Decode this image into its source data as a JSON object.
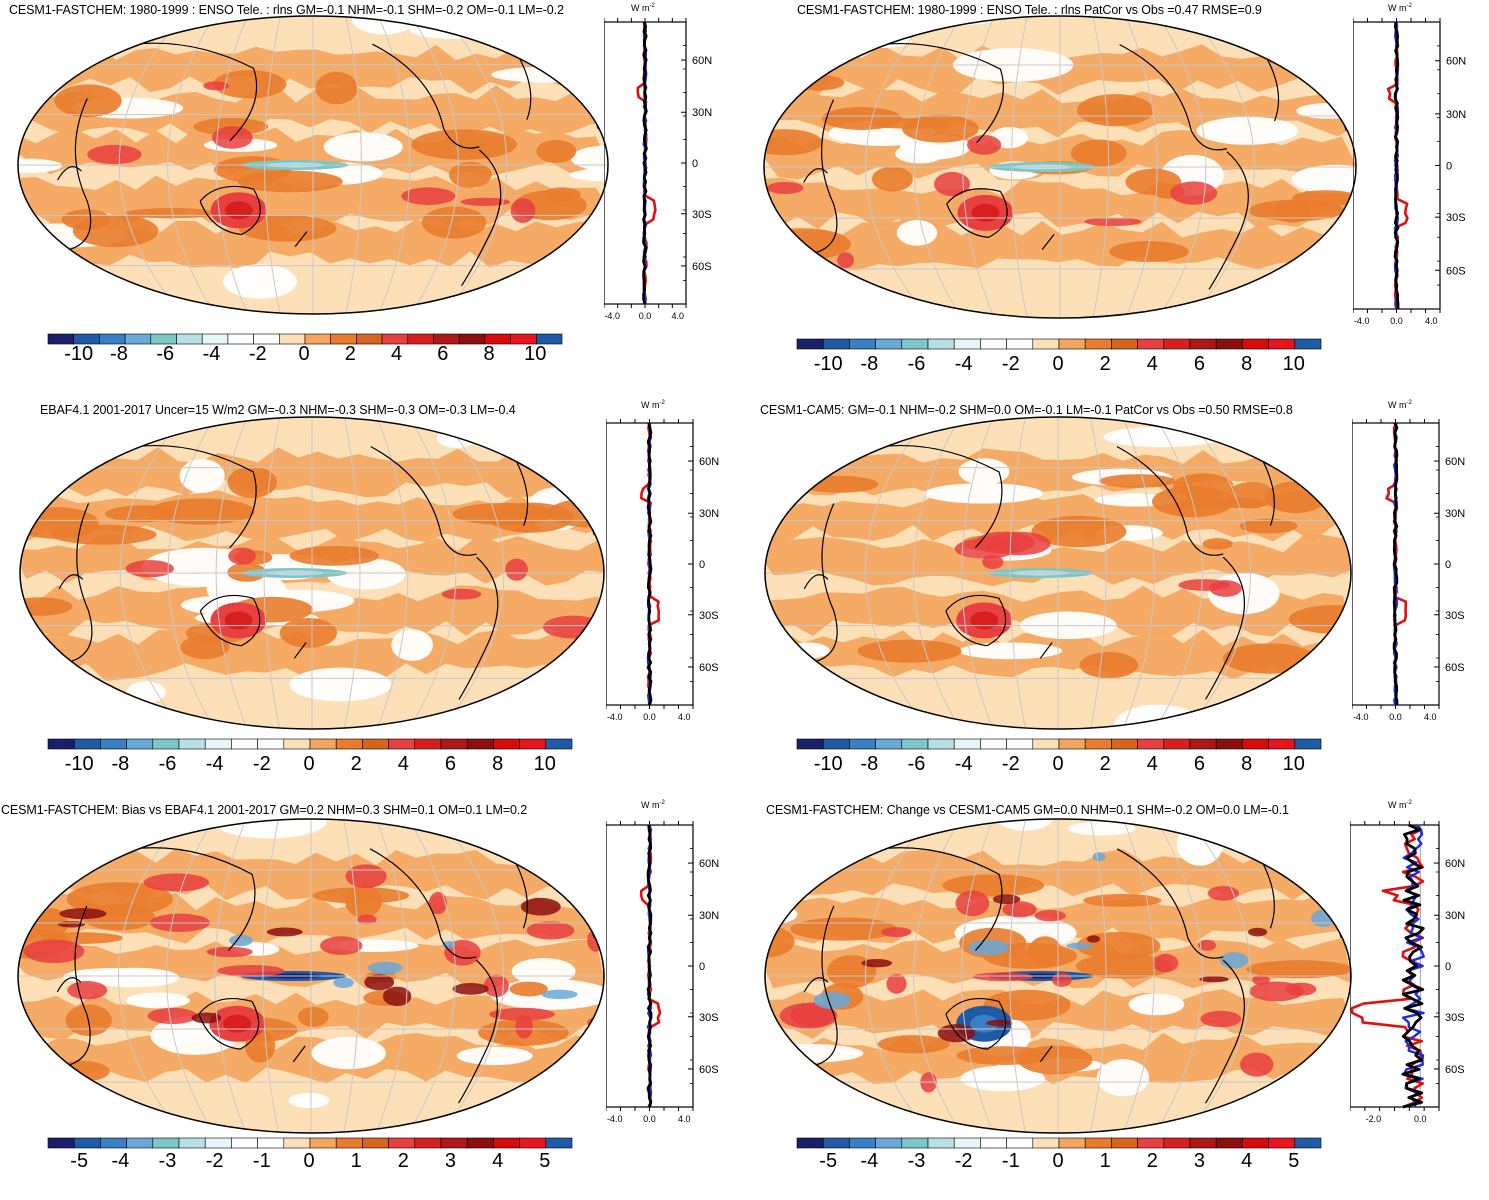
{
  "panels": [
    {
      "id": "p1",
      "title": "CESM1-FASTCHEM: 1980-1999 : ENSO Tele. : rlns GM=-0.1 NHM=-0.1 SHM=-0.2 OM=-0.1 LM=-0.2",
      "scale": "wide",
      "colorbar_labels": [
        "-10",
        "-8",
        "-6",
        "-4",
        "-2",
        "0",
        "2",
        "4",
        "6",
        "8",
        "10"
      ],
      "profile": {
        "units": "W m",
        "units_exp": "-2",
        "xticks": [
          "-4.0",
          "0.0",
          "4.0"
        ],
        "yticks": [
          "60N",
          "30N",
          "0",
          "30S",
          "60S"
        ],
        "xrange": [
          -5,
          5
        ]
      }
    },
    {
      "id": "p2",
      "title": "CESM1-FASTCHEM: 1980-1999 : ENSO Tele. : rlns PatCor vs Obs =0.47 RMSE=0.9",
      "scale": "wide",
      "colorbar_labels": [
        "-10",
        "-8",
        "-6",
        "-4",
        "-2",
        "0",
        "2",
        "4",
        "6",
        "8",
        "10"
      ],
      "profile": {
        "units": "W m",
        "units_exp": "-2",
        "xticks": [
          "-4.0",
          "0.0",
          "4.0"
        ],
        "yticks": [
          "60N",
          "30N",
          "0",
          "30S",
          "60S"
        ],
        "xrange": [
          -5,
          5
        ]
      }
    },
    {
      "id": "p3",
      "title": "EBAF4.1 2001-2017 Uncer=15 W/m2 GM=-0.3 NHM=-0.3 SHM=-0.3 OM=-0.3 LM=-0.4",
      "scale": "wide",
      "colorbar_labels": [
        "-10",
        "-8",
        "-6",
        "-4",
        "-2",
        "0",
        "2",
        "4",
        "6",
        "8",
        "10"
      ],
      "profile": {
        "units": "W m",
        "units_exp": "-2",
        "xticks": [
          "-4.0",
          "0.0",
          "4.0"
        ],
        "yticks": [
          "60N",
          "30N",
          "0",
          "30S",
          "60S"
        ],
        "xrange": [
          -5,
          5
        ]
      }
    },
    {
      "id": "p4",
      "title": "CESM1-CAM5: GM=-0.1 NHM=-0.2 SHM=0.0 OM=-0.1 LM=-0.1 PatCor vs Obs =0.50 RMSE=0.8",
      "scale": "wide",
      "colorbar_labels": [
        "-10",
        "-8",
        "-6",
        "-4",
        "-2",
        "0",
        "2",
        "4",
        "6",
        "8",
        "10"
      ],
      "profile": {
        "units": "W m",
        "units_exp": "-2",
        "xticks": [
          "-4.0",
          "0.0",
          "4.0"
        ],
        "yticks": [
          "60N",
          "30N",
          "0",
          "30S",
          "60S"
        ],
        "xrange": [
          -5,
          5
        ]
      }
    },
    {
      "id": "p5",
      "title": "CESM1-FASTCHEM: Bias vs EBAF4.1 2001-2017 GM=0.2 NHM=0.3 SHM=0.1 OM=0.1 LM=0.2",
      "scale": "narrow",
      "colorbar_labels": [
        "-5",
        "-4",
        "-3",
        "-2",
        "-1",
        "0",
        "1",
        "2",
        "3",
        "4",
        "5"
      ],
      "profile": {
        "units": "W m",
        "units_exp": "-2",
        "xticks": [
          "-4.0",
          "0.0",
          "4.0"
        ],
        "yticks": [
          "60N",
          "30N",
          "0",
          "30S",
          "60S"
        ],
        "xrange": [
          -5,
          5
        ]
      }
    },
    {
      "id": "p6",
      "title": "CESM1-FASTCHEM: Change vs CESM1-CAM5 GM=0.0 NHM=0.1 SHM=-0.2 OM=0.0 LM=-0.1",
      "scale": "narrow",
      "colorbar_labels": [
        "-5",
        "-4",
        "-3",
        "-2",
        "-1",
        "0",
        "1",
        "2",
        "3",
        "4",
        "5"
      ],
      "profile": {
        "units": "W m",
        "units_exp": "-2",
        "xticks": [
          "-2.0",
          "0.0"
        ],
        "yticks": [
          "60N",
          "30N",
          "0",
          "30S",
          "60S"
        ],
        "xrange": [
          -3,
          0.8
        ]
      }
    }
  ],
  "palette": [
    "#1a1f6b",
    "#1f5aa6",
    "#3a7ec4",
    "#6aa8d8",
    "#7cc6c6",
    "#b8e0e8",
    "#e6f6f6",
    "#ffffff",
    "#ffffff",
    "#fde0b8",
    "#f4a660",
    "#e97c2c",
    "#d8651e",
    "#e84040",
    "#d81f1f",
    "#b01818",
    "#8c0f0f",
    "#d80a0a",
    "#e8141e",
    "#1f5aa6"
  ]
}
